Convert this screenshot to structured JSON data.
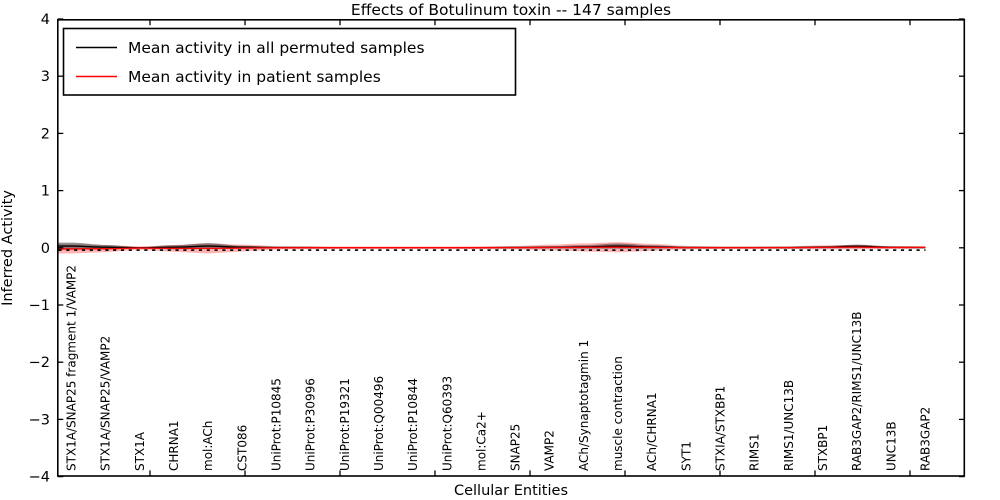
{
  "title": "Effects of Botulinum toxin -- 147 samples",
  "axes": {
    "xlabel": "Cellular Entities",
    "ylabel": "Inferred Activity",
    "ytick_labels": [
      "4",
      "3",
      "2",
      "1",
      "0",
      "−1",
      "−2",
      "−3",
      "−4"
    ]
  },
  "legend": {
    "items": [
      {
        "label": "Mean activity in all permuted samples",
        "color": "#000000"
      },
      {
        "label": "Mean activity in patient samples",
        "color": "#ff0000"
      }
    ]
  },
  "chart_data": {
    "type": "line",
    "title": "Effects of Botulinum toxin -- 147 samples",
    "xlabel": "Cellular Entities",
    "ylabel": "Inferred Activity",
    "ylim": [
      -4,
      4
    ],
    "yticks": [
      -4,
      -3,
      -2,
      -1,
      0,
      1,
      2,
      3,
      4
    ],
    "grid": false,
    "legend_position": "upper left",
    "categories": [
      "STX1A/SNAP25 fragment 1/VAMP2",
      "STX1A/SNAP25/VAMP2",
      "STX1A",
      "CHRNA1",
      "mol:ACh",
      "CST086",
      "UniProt:P10845",
      "UniProt:P30996",
      "UniProt:P19321",
      "UniProt:Q00496",
      "UniProt:P10844",
      "UniProt:Q60393",
      "mol:Ca2+",
      "SNAP25",
      "VAMP2",
      "ACh/Synaptotagmin 1",
      "muscle contraction",
      "ACh/CHRNA1",
      "SYT1",
      "STXIA/STXBP1",
      "RIMS1",
      "RIMS1/UNC13B",
      "STXBP1",
      "RAB3GAP2/RIMS1/UNC13B",
      "UNC13B",
      "RAB3GAP2"
    ],
    "series": [
      {
        "name": "Mean activity in all permuted samples",
        "color": "#000000",
        "band_color": "rgba(55,55,55,0.55)",
        "values": [
          0.03,
          0.01,
          0.0,
          0.01,
          0.03,
          0.01,
          0.005,
          0.003,
          0.002,
          0.002,
          0.002,
          0.002,
          0.002,
          0.005,
          0.008,
          0.015,
          0.03,
          0.015,
          0.005,
          0.003,
          0.003,
          0.005,
          0.01,
          0.025,
          0.008,
          0.005
        ],
        "band_std": [
          0.06,
          0.04,
          0.015,
          0.035,
          0.05,
          0.025,
          0.012,
          0.012,
          0.012,
          0.012,
          0.012,
          0.012,
          0.012,
          0.015,
          0.02,
          0.03,
          0.045,
          0.03,
          0.015,
          0.012,
          0.012,
          0.012,
          0.02,
          0.03,
          0.015,
          0.012
        ]
      },
      {
        "name": "Mean activity in patient samples",
        "color": "#ff0000",
        "band_color": "rgba(255,0,0,0.30)",
        "values": [
          -0.02,
          -0.015,
          -0.005,
          -0.01,
          -0.01,
          -0.005,
          0.0,
          0.002,
          0.002,
          0.002,
          0.002,
          0.002,
          0.002,
          0.003,
          0.005,
          0.008,
          0.01,
          0.008,
          0.003,
          0.002,
          0.002,
          0.003,
          0.008,
          0.012,
          0.005,
          0.008
        ],
        "band_std": [
          0.08,
          0.06,
          0.03,
          0.06,
          0.09,
          0.06,
          0.03,
          0.025,
          0.02,
          0.02,
          0.02,
          0.02,
          0.025,
          0.03,
          0.05,
          0.07,
          0.09,
          0.06,
          0.03,
          0.02,
          0.02,
          0.025,
          0.035,
          0.04,
          0.025,
          0.02
        ]
      }
    ],
    "zero_reference_line": 0
  }
}
